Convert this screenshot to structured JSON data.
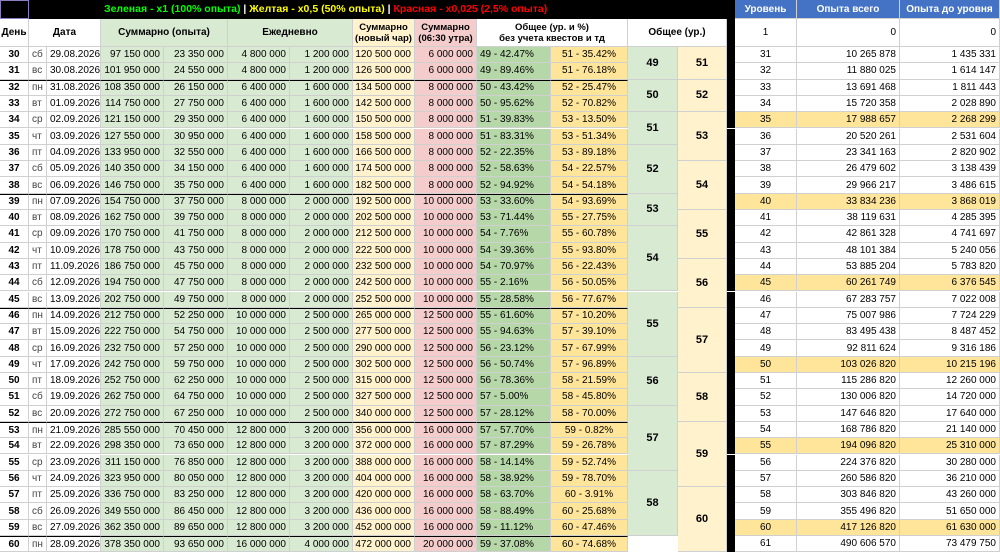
{
  "legend": {
    "green": "Зеленая - x1 (100% опыта)",
    "sep1": " | ",
    "yellow": "Желтая - x0,5 (50% опыта)",
    "sep2": " | ",
    "red": "Красная - x0,025 (2,5% опыта)"
  },
  "headers": {
    "day": "День",
    "date": "Дата",
    "summary": "Суммарно (опыта)",
    "daily": "Ежедневно",
    "sum_new": "Суммарно\n(новый чар)",
    "sum_0630": "Суммарно\n(06:30 утра)",
    "overall_pct": "Общее (ур. и %)\nбез учета квестов и тд",
    "overall_lvl": "Общее (ур.)",
    "level": "Уровень",
    "xp_total": "Опыта всего",
    "xp_to_level": "Опыта до уровня"
  },
  "top_right_row": {
    "level": "1",
    "xp_total": "0",
    "xp_to_level": "0"
  },
  "rows": [
    {
      "day": "30",
      "dow": "сб",
      "date": "29.08.2026",
      "s1": "97 150 000",
      "s2": "23 350 000",
      "d1": "4 800 000",
      "d2": "1 200 000",
      "n1": "120 500 000",
      "n2": "6 000 000",
      "p1": "49 - 42.47%",
      "p2": "51 - 35.42%"
    },
    {
      "day": "31",
      "dow": "вс",
      "date": "30.08.2026",
      "s1": "101 950 000",
      "s2": "24 550 000",
      "d1": "4 800 000",
      "d2": "1 200 000",
      "n1": "126 500 000",
      "n2": "6 000 000",
      "p1": "49 - 89.46%",
      "p2": "51 - 76.18%"
    },
    {
      "day": "32",
      "dow": "пн",
      "date": "31.08.2026",
      "s1": "108 350 000",
      "s2": "26 150 000",
      "d1": "6 400 000",
      "d2": "1 600 000",
      "n1": "134 500 000",
      "n2": "8 000 000",
      "p1": "50 - 43.42%",
      "p2": "52 - 25.47%"
    },
    {
      "day": "33",
      "dow": "вт",
      "date": "01.09.2026",
      "s1": "114 750 000",
      "s2": "27 750 000",
      "d1": "6 400 000",
      "d2": "1 600 000",
      "n1": "142 500 000",
      "n2": "8 000 000",
      "p1": "50 - 95.62%",
      "p2": "52 - 70.82%"
    },
    {
      "day": "34",
      "dow": "ср",
      "date": "02.09.2026",
      "s1": "121 150 000",
      "s2": "29 350 000",
      "d1": "6 400 000",
      "d2": "1 600 000",
      "n1": "150 500 000",
      "n2": "8 000 000",
      "p1": "51 - 39.83%",
      "p2": "53 - 13.50%"
    },
    {
      "day": "35",
      "dow": "чт",
      "date": "03.09.2026",
      "s1": "127 550 000",
      "s2": "30 950 000",
      "d1": "6 400 000",
      "d2": "1 600 000",
      "n1": "158 500 000",
      "n2": "8 000 000",
      "p1": "51 - 83.31%",
      "p2": "53 - 51.34%"
    },
    {
      "day": "36",
      "dow": "пт",
      "date": "04.09.2026",
      "s1": "133 950 000",
      "s2": "32 550 000",
      "d1": "6 400 000",
      "d2": "1 600 000",
      "n1": "166 500 000",
      "n2": "8 000 000",
      "p1": "52 - 22.35%",
      "p2": "53 - 89.18%"
    },
    {
      "day": "37",
      "dow": "сб",
      "date": "05.09.2026",
      "s1": "140 350 000",
      "s2": "34 150 000",
      "d1": "6 400 000",
      "d2": "1 600 000",
      "n1": "174 500 000",
      "n2": "8 000 000",
      "p1": "52 - 58.63%",
      "p2": "54 - 22.57%"
    },
    {
      "day": "38",
      "dow": "вс",
      "date": "06.09.2026",
      "s1": "146 750 000",
      "s2": "35 750 000",
      "d1": "6 400 000",
      "d2": "1 600 000",
      "n1": "182 500 000",
      "n2": "8 000 000",
      "p1": "52 - 94.92%",
      "p2": "54 - 54.18%"
    },
    {
      "day": "39",
      "dow": "пн",
      "date": "07.09.2026",
      "s1": "154 750 000",
      "s2": "37 750 000",
      "d1": "8 000 000",
      "d2": "2 000 000",
      "n1": "192 500 000",
      "n2": "10 000 000",
      "p1": "53 - 33.60%",
      "p2": "54 - 93.69%"
    },
    {
      "day": "40",
      "dow": "вт",
      "date": "08.09.2026",
      "s1": "162 750 000",
      "s2": "39 750 000",
      "d1": "8 000 000",
      "d2": "2 000 000",
      "n1": "202 500 000",
      "n2": "10 000 000",
      "p1": "53 - 71.44%",
      "p2": "55 - 27.75%"
    },
    {
      "day": "41",
      "dow": "ср",
      "date": "09.09.2026",
      "s1": "170 750 000",
      "s2": "41 750 000",
      "d1": "8 000 000",
      "d2": "2 000 000",
      "n1": "212 500 000",
      "n2": "10 000 000",
      "p1": "54 - 7.76%",
      "p2": "55 - 60.78%"
    },
    {
      "day": "42",
      "dow": "чт",
      "date": "10.09.2026",
      "s1": "178 750 000",
      "s2": "43 750 000",
      "d1": "8 000 000",
      "d2": "2 000 000",
      "n1": "222 500 000",
      "n2": "10 000 000",
      "p1": "54 - 39.36%",
      "p2": "55 - 93.80%"
    },
    {
      "day": "43",
      "dow": "пт",
      "date": "11.09.2026",
      "s1": "186 750 000",
      "s2": "45 750 000",
      "d1": "8 000 000",
      "d2": "2 000 000",
      "n1": "232 500 000",
      "n2": "10 000 000",
      "p1": "54 - 70.97%",
      "p2": "56 - 22.43%"
    },
    {
      "day": "44",
      "dow": "сб",
      "date": "12.09.2026",
      "s1": "194 750 000",
      "s2": "47 750 000",
      "d1": "8 000 000",
      "d2": "2 000 000",
      "n1": "242 500 000",
      "n2": "10 000 000",
      "p1": "55 - 2.16%",
      "p2": "56 - 50.05%"
    },
    {
      "day": "45",
      "dow": "вс",
      "date": "13.09.2026",
      "s1": "202 750 000",
      "s2": "49 750 000",
      "d1": "8 000 000",
      "d2": "2 000 000",
      "n1": "252 500 000",
      "n2": "10 000 000",
      "p1": "55 - 28.58%",
      "p2": "56 - 77.67%"
    },
    {
      "day": "46",
      "dow": "пн",
      "date": "14.09.2026",
      "s1": "212 750 000",
      "s2": "52 250 000",
      "d1": "10 000 000",
      "d2": "2 500 000",
      "n1": "265 000 000",
      "n2": "12 500 000",
      "p1": "55 - 61.60%",
      "p2": "57 - 10.20%"
    },
    {
      "day": "47",
      "dow": "вт",
      "date": "15.09.2026",
      "s1": "222 750 000",
      "s2": "54 750 000",
      "d1": "10 000 000",
      "d2": "2 500 000",
      "n1": "277 500 000",
      "n2": "12 500 000",
      "p1": "55 - 94.63%",
      "p2": "57 - 39.10%"
    },
    {
      "day": "48",
      "dow": "ср",
      "date": "16.09.2026",
      "s1": "232 750 000",
      "s2": "57 250 000",
      "d1": "10 000 000",
      "d2": "2 500 000",
      "n1": "290 000 000",
      "n2": "12 500 000",
      "p1": "56 - 23.12%",
      "p2": "57 - 67.99%"
    },
    {
      "day": "49",
      "dow": "чт",
      "date": "17.09.2026",
      "s1": "242 750 000",
      "s2": "59 750 000",
      "d1": "10 000 000",
      "d2": "2 500 000",
      "n1": "302 500 000",
      "n2": "12 500 000",
      "p1": "56 - 50.74%",
      "p2": "57 - 96.89%"
    },
    {
      "day": "50",
      "dow": "пт",
      "date": "18.09.2026",
      "s1": "252 750 000",
      "s2": "62 250 000",
      "d1": "10 000 000",
      "d2": "2 500 000",
      "n1": "315 000 000",
      "n2": "12 500 000",
      "p1": "56 - 78.36%",
      "p2": "58 - 21.59%"
    },
    {
      "day": "51",
      "dow": "сб",
      "date": "19.09.2026",
      "s1": "262 750 000",
      "s2": "64 750 000",
      "d1": "10 000 000",
      "d2": "2 500 000",
      "n1": "327 500 000",
      "n2": "12 500 000",
      "p1": "57 - 5.00%",
      "p2": "58 - 45.80%"
    },
    {
      "day": "52",
      "dow": "вс",
      "date": "20.09.2026",
      "s1": "272 750 000",
      "s2": "67 250 000",
      "d1": "10 000 000",
      "d2": "2 500 000",
      "n1": "340 000 000",
      "n2": "12 500 000",
      "p1": "57 - 28.12%",
      "p2": "58 - 70.00%"
    },
    {
      "day": "53",
      "dow": "пн",
      "date": "21.09.2026",
      "s1": "285 550 000",
      "s2": "70 450 000",
      "d1": "12 800 000",
      "d2": "3 200 000",
      "n1": "356 000 000",
      "n2": "16 000 000",
      "p1": "57 - 57.70%",
      "p2": "59 - 0.82%"
    },
    {
      "day": "54",
      "dow": "вт",
      "date": "22.09.2026",
      "s1": "298 350 000",
      "s2": "73 650 000",
      "d1": "12 800 000",
      "d2": "3 200 000",
      "n1": "372 000 000",
      "n2": "16 000 000",
      "p1": "57 - 87.29%",
      "p2": "59 - 26.78%"
    },
    {
      "day": "55",
      "dow": "ср",
      "date": "23.09.2026",
      "s1": "311 150 000",
      "s2": "76 850 000",
      "d1": "12 800 000",
      "d2": "3 200 000",
      "n1": "388 000 000",
      "n2": "16 000 000",
      "p1": "58 - 14.14%",
      "p2": "59 - 52.74%"
    },
    {
      "day": "56",
      "dow": "чт",
      "date": "24.09.2026",
      "s1": "323 950 000",
      "s2": "80 050 000",
      "d1": "12 800 000",
      "d2": "3 200 000",
      "n1": "404 000 000",
      "n2": "16 000 000",
      "p1": "58 - 38.92%",
      "p2": "59 - 78.70%"
    },
    {
      "day": "57",
      "dow": "пт",
      "date": "25.09.2026",
      "s1": "336 750 000",
      "s2": "83 250 000",
      "d1": "12 800 000",
      "d2": "3 200 000",
      "n1": "420 000 000",
      "n2": "16 000 000",
      "p1": "58 - 63.70%",
      "p2": "60 - 3.91%"
    },
    {
      "day": "58",
      "dow": "сб",
      "date": "26.09.2026",
      "s1": "349 550 000",
      "s2": "86 450 000",
      "d1": "12 800 000",
      "d2": "3 200 000",
      "n1": "436 000 000",
      "n2": "16 000 000",
      "p1": "58 - 88.49%",
      "p2": "60 - 25.68%"
    },
    {
      "day": "59",
      "dow": "вс",
      "date": "27.09.2026",
      "s1": "362 350 000",
      "s2": "89 650 000",
      "d1": "12 800 000",
      "d2": "3 200 000",
      "n1": "452 000 000",
      "n2": "16 000 000",
      "p1": "59 - 11.12%",
      "p2": "60 - 47.46%"
    },
    {
      "day": "60",
      "dow": "пн",
      "date": "28.09.2026",
      "s1": "378 350 000",
      "s2": "93 650 000",
      "d1": "16 000 000",
      "d2": "4 000 000",
      "n1": "472 000 000",
      "n2": "20 000 000",
      "p1": "59 - 37.08%",
      "p2": "60 - 74.68%"
    }
  ],
  "overall_levels_left": [
    {
      "value": "49",
      "start": 0,
      "span": 2
    },
    {
      "value": "50",
      "start": 2,
      "span": 2
    },
    {
      "value": "51",
      "start": 4,
      "span": 2
    },
    {
      "value": "52",
      "start": 6,
      "span": 3
    },
    {
      "value": "53",
      "start": 9,
      "span": 2
    },
    {
      "value": "54",
      "start": 11,
      "span": 4
    },
    {
      "value": "55",
      "start": 15,
      "span": 4
    },
    {
      "value": "56",
      "start": 19,
      "span": 3
    },
    {
      "value": "57",
      "start": 22,
      "span": 4
    },
    {
      "value": "58",
      "start": 26,
      "span": 4
    }
  ],
  "overall_levels_right": [
    {
      "value": "51",
      "start": 0,
      "span": 2
    },
    {
      "value": "52",
      "start": 2,
      "span": 2
    },
    {
      "value": "53",
      "start": 4,
      "span": 3
    },
    {
      "value": "54",
      "start": 7,
      "span": 3
    },
    {
      "value": "55",
      "start": 10,
      "span": 3
    },
    {
      "value": "56",
      "start": 13,
      "span": 3
    },
    {
      "value": "57",
      "start": 16,
      "span": 4
    },
    {
      "value": "58",
      "start": 20,
      "span": 3
    },
    {
      "value": "59",
      "start": 23,
      "span": 4
    },
    {
      "value": "60",
      "start": 27,
      "span": 4
    }
  ],
  "levels": [
    {
      "level": "31",
      "xp": "10 265 878",
      "to": "1 435 331",
      "hl": false
    },
    {
      "level": "32",
      "xp": "11 880 025",
      "to": "1 614 147",
      "hl": false
    },
    {
      "level": "33",
      "xp": "13 691 468",
      "to": "1 811 443",
      "hl": false
    },
    {
      "level": "34",
      "xp": "15 720 358",
      "to": "2 028 890",
      "hl": false
    },
    {
      "level": "35",
      "xp": "17 988 657",
      "to": "2 268 299",
      "hl": true
    },
    {
      "level": "36",
      "xp": "20 520 261",
      "to": "2 531 604",
      "hl": false
    },
    {
      "level": "37",
      "xp": "23 341 163",
      "to": "2 820 902",
      "hl": false
    },
    {
      "level": "38",
      "xp": "26 479 602",
      "to": "3 138 439",
      "hl": false
    },
    {
      "level": "39",
      "xp": "29 966 217",
      "to": "3 486 615",
      "hl": false
    },
    {
      "level": "40",
      "xp": "33 834 236",
      "to": "3 868 019",
      "hl": true
    },
    {
      "level": "41",
      "xp": "38 119 631",
      "to": "4 285 395",
      "hl": false
    },
    {
      "level": "42",
      "xp": "42 861 328",
      "to": "4 741 697",
      "hl": false
    },
    {
      "level": "43",
      "xp": "48 101 384",
      "to": "5 240 056",
      "hl": false
    },
    {
      "level": "44",
      "xp": "53 885 204",
      "to": "5 783 820",
      "hl": false
    },
    {
      "level": "45",
      "xp": "60 261 749",
      "to": "6 376 545",
      "hl": true
    },
    {
      "level": "46",
      "xp": "67 283 757",
      "to": "7 022 008",
      "hl": false
    },
    {
      "level": "47",
      "xp": "75 007 986",
      "to": "7 724 229",
      "hl": false
    },
    {
      "level": "48",
      "xp": "83 495 438",
      "to": "8 487 452",
      "hl": false
    },
    {
      "level": "49",
      "xp": "92 811 624",
      "to": "9 316 186",
      "hl": false
    },
    {
      "level": "50",
      "xp": "103 026 820",
      "to": "10 215 196",
      "hl": true
    },
    {
      "level": "51",
      "xp": "115 286 820",
      "to": "12 260 000",
      "hl": false
    },
    {
      "level": "52",
      "xp": "130 006 820",
      "to": "14 720 000",
      "hl": false
    },
    {
      "level": "53",
      "xp": "147 646 820",
      "to": "17 640 000",
      "hl": false
    },
    {
      "level": "54",
      "xp": "168 786 820",
      "to": "21 140 000",
      "hl": false
    },
    {
      "level": "55",
      "xp": "194 096 820",
      "to": "25 310 000",
      "hl": true
    },
    {
      "level": "56",
      "xp": "224 376 820",
      "to": "30 280 000",
      "hl": false
    },
    {
      "level": "57",
      "xp": "260 586 820",
      "to": "36 210 000",
      "hl": false
    },
    {
      "level": "58",
      "xp": "303 846 820",
      "to": "43 260 000",
      "hl": false
    },
    {
      "level": "59",
      "xp": "355 496 820",
      "to": "51 650 000",
      "hl": false
    },
    {
      "level": "60",
      "xp": "417 126 820",
      "to": "61 630 000",
      "hl": true
    },
    {
      "level": "61",
      "xp": "490 606 570",
      "to": "73 479 750",
      "hl": false
    }
  ]
}
